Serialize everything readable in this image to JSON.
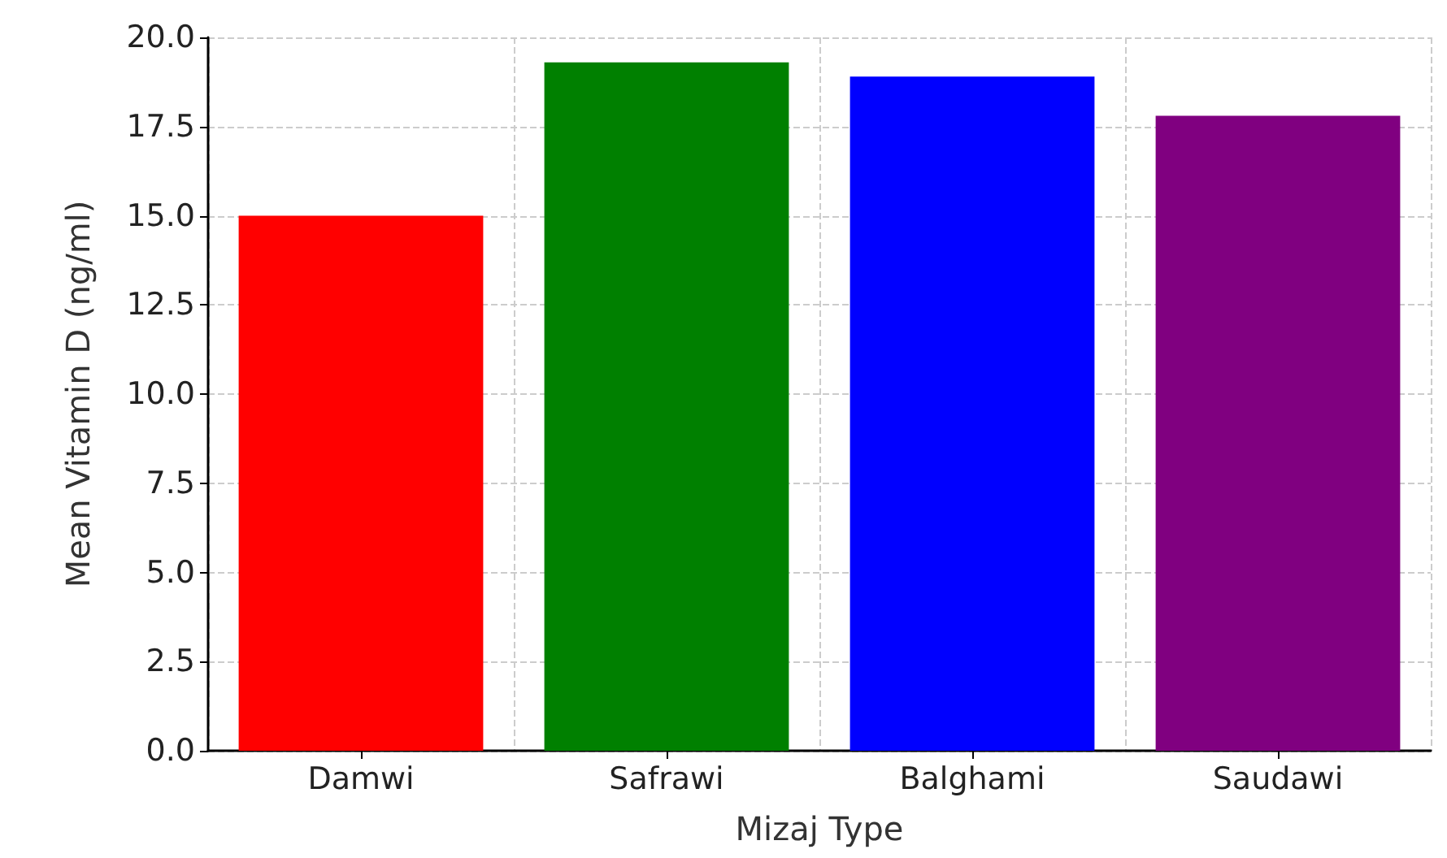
{
  "chart_data": {
    "type": "bar",
    "xlabel": "Mizaj Type",
    "ylabel": "Mean Vitamin D (ng/ml)",
    "categories": [
      "Damwi",
      "Safrawi",
      "Balghami",
      "Saudawi"
    ],
    "values": [
      15.0,
      19.3,
      18.9,
      17.8
    ],
    "colors": [
      "#ff0000",
      "#008000",
      "#0000ff",
      "#800080"
    ],
    "ylim": [
      0,
      20
    ],
    "yticks": [
      {
        "value": 0,
        "label": "0.0"
      },
      {
        "value": 2.5,
        "label": "2.5"
      },
      {
        "value": 5,
        "label": "5.0"
      },
      {
        "value": 7.5,
        "label": "7.5"
      },
      {
        "value": 10,
        "label": "10.0"
      },
      {
        "value": 12.5,
        "label": "12.5"
      },
      {
        "value": 15,
        "label": "15.0"
      },
      {
        "value": 17.5,
        "label": "17.5"
      },
      {
        "value": 20,
        "label": "20.0"
      }
    ],
    "grid": true
  }
}
